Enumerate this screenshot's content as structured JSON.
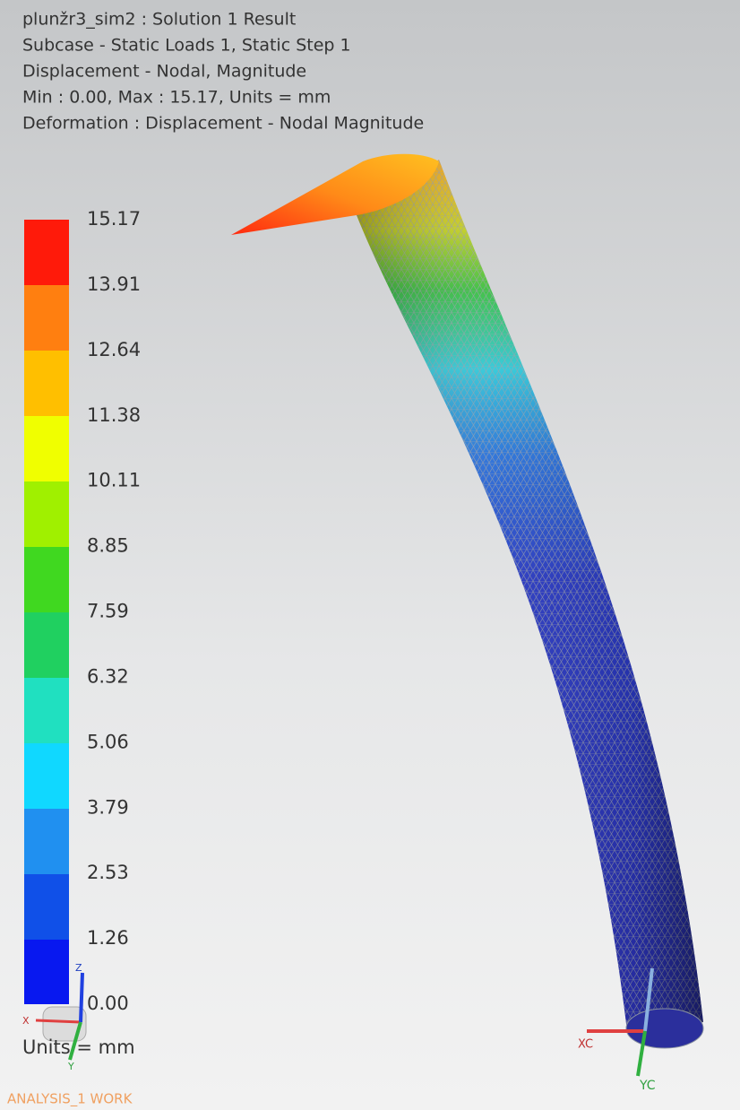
{
  "header": {
    "lines": [
      "plunžr3_sim2 : Solution 1 Result",
      "Subcase - Static Loads 1, Static Step 1",
      "Displacement - Nodal, Magnitude",
      "Min : 0.00, Max : 15.17, Units = mm",
      "Deformation : Displacement - Nodal Magnitude"
    ]
  },
  "legend": {
    "labels": [
      "15.17",
      "13.91",
      "12.64",
      "11.38",
      "10.11",
      "8.85",
      "7.59",
      "6.32",
      "5.06",
      "3.79",
      "2.53",
      "1.26",
      "0.00"
    ],
    "units": "Units = mm"
  },
  "triad_left": {
    "x": "X",
    "y": "Y",
    "z": "Z"
  },
  "triad_right": {
    "x": "XC",
    "y": "YC"
  },
  "status": "ANALYSIS_1 WORK"
}
